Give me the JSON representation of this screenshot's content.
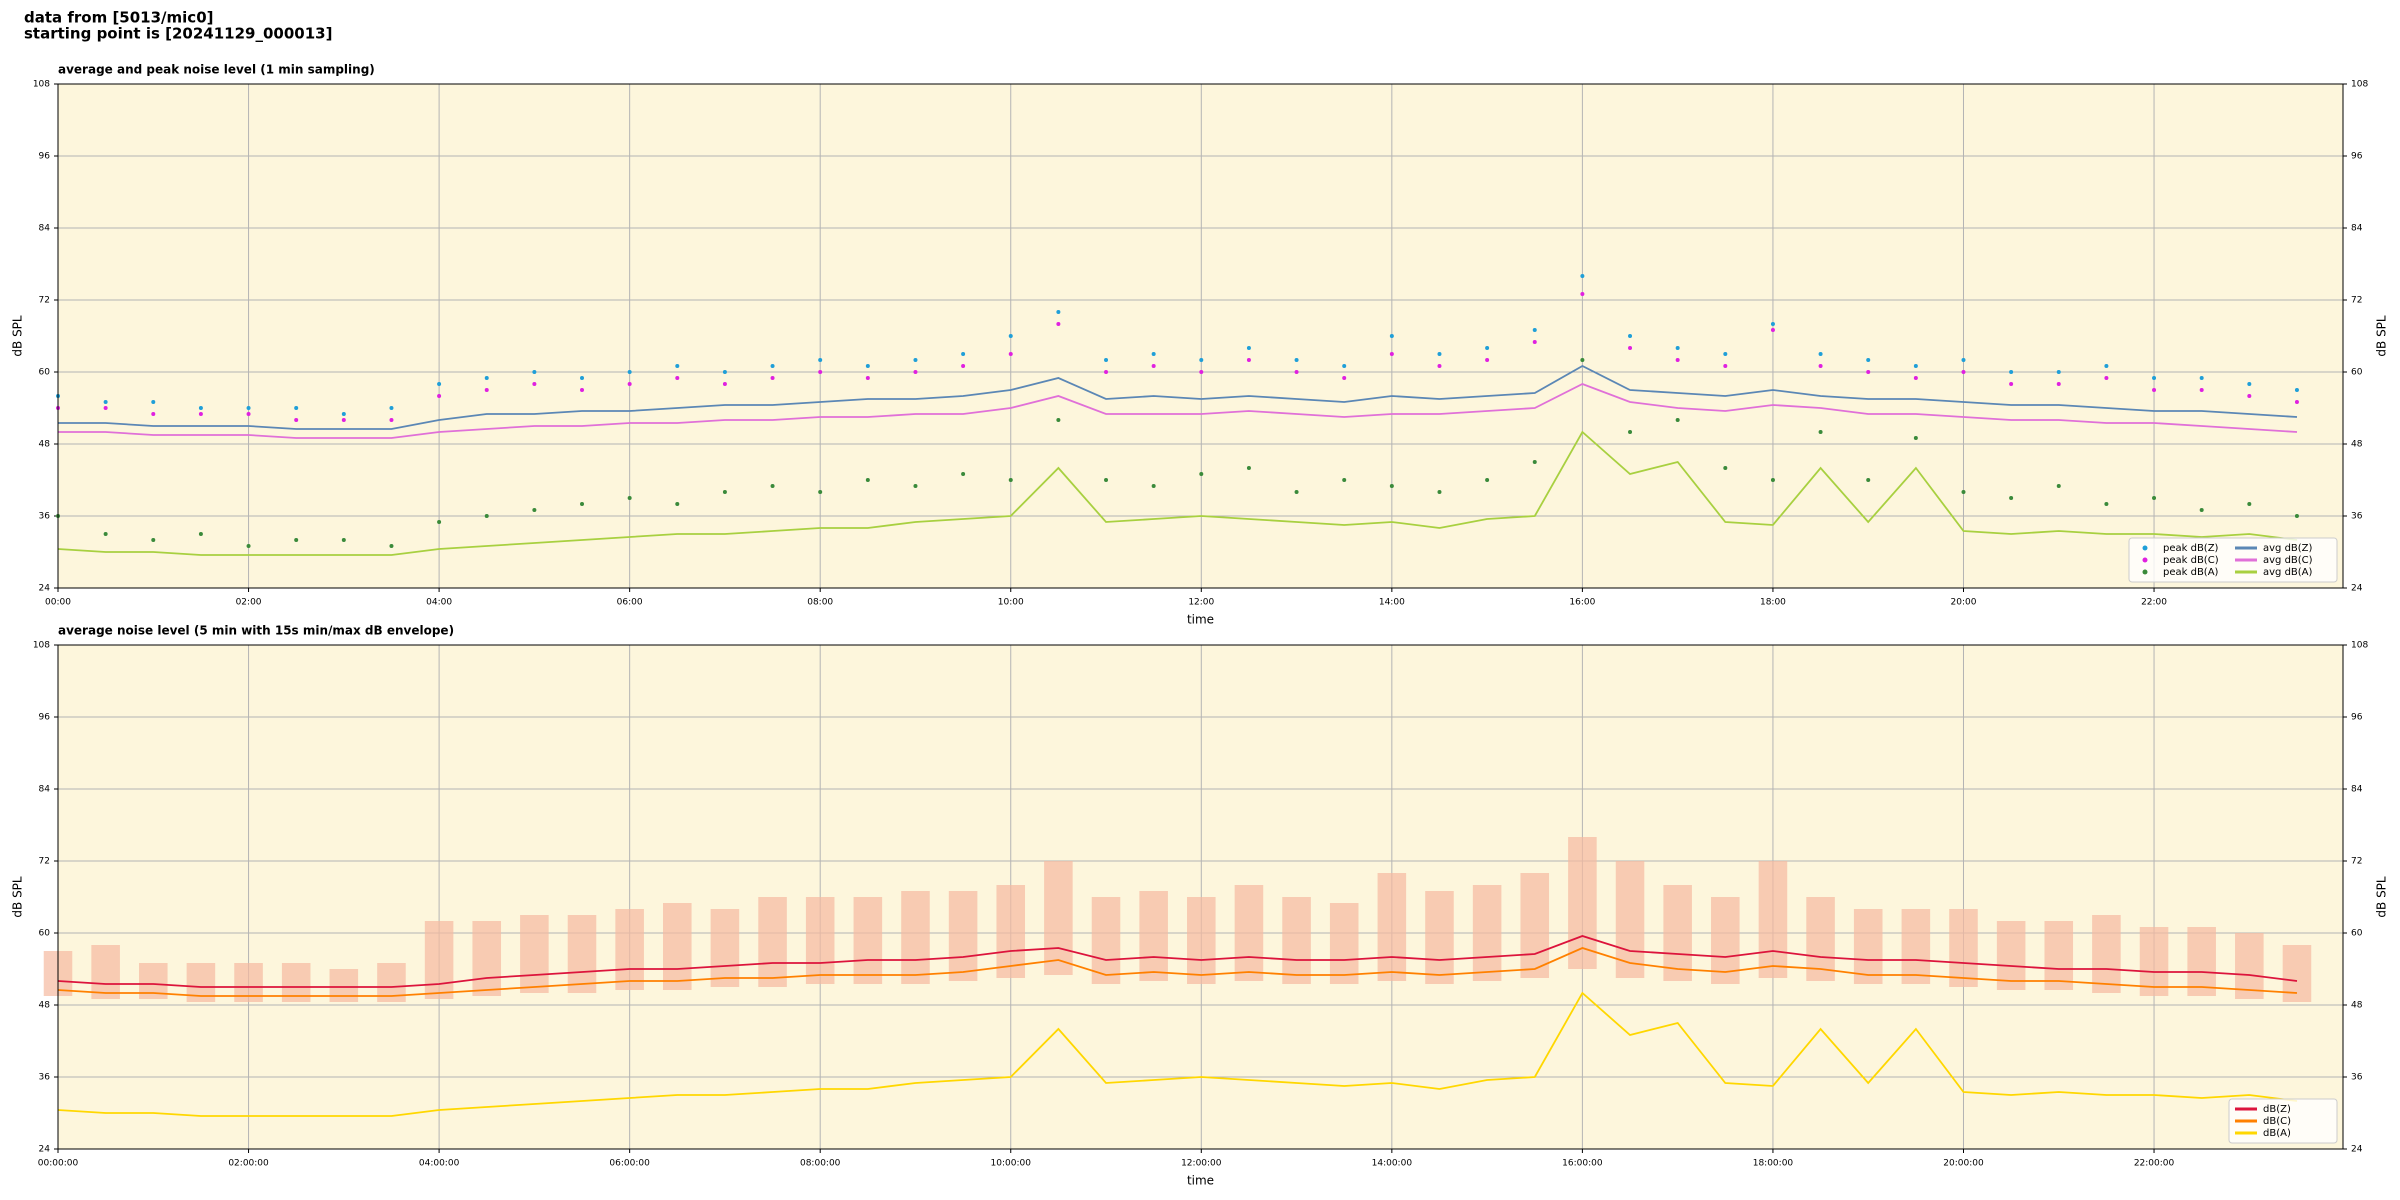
{
  "header": {
    "lines": [
      "data from [5013/mic0]",
      "starting point is [20241129_000013]"
    ]
  },
  "chart_data": [
    {
      "type": "line",
      "title": "average and peak noise level (1 min sampling)",
      "x_label": "time",
      "y_label": "dB SPL",
      "grid": true,
      "legend": "lower right",
      "legend_columns": 2,
      "background": "#fdf6dc",
      "xlim": [
        "00:00",
        "23:59"
      ],
      "xticks": [
        "00:00",
        "02:00",
        "04:00",
        "06:00",
        "08:00",
        "10:00",
        "12:00",
        "14:00",
        "16:00",
        "18:00",
        "20:00",
        "22:00"
      ],
      "ylim": [
        24,
        108
      ],
      "yticks": [
        24,
        36,
        48,
        60,
        72,
        84,
        96,
        108
      ],
      "x": [
        "00:00",
        "00:30",
        "01:00",
        "01:30",
        "02:00",
        "02:30",
        "03:00",
        "03:30",
        "04:00",
        "04:30",
        "05:00",
        "05:30",
        "06:00",
        "06:30",
        "07:00",
        "07:30",
        "08:00",
        "08:30",
        "09:00",
        "09:30",
        "10:00",
        "10:30",
        "11:00",
        "11:30",
        "12:00",
        "12:30",
        "13:00",
        "13:30",
        "14:00",
        "14:30",
        "15:00",
        "15:30",
        "16:00",
        "16:30",
        "17:00",
        "17:30",
        "18:00",
        "18:30",
        "19:00",
        "19:30",
        "20:00",
        "20:30",
        "21:00",
        "21:30",
        "22:00",
        "22:30",
        "23:00",
        "23:30"
      ],
      "series": [
        {
          "name": "peak dB(Z)",
          "kind": "scatter",
          "color": "#1f9fd8",
          "values": [
            56,
            55,
            55,
            54,
            54,
            54,
            53,
            54,
            58,
            59,
            60,
            59,
            60,
            61,
            60,
            61,
            62,
            61,
            62,
            63,
            66,
            70,
            62,
            63,
            62,
            64,
            62,
            61,
            66,
            63,
            64,
            67,
            76,
            66,
            64,
            63,
            68,
            63,
            62,
            61,
            62,
            60,
            60,
            61,
            59,
            59,
            58,
            57
          ]
        },
        {
          "name": "peak dB(C)",
          "kind": "scatter",
          "color": "#e020e0",
          "values": [
            54,
            54,
            53,
            53,
            53,
            52,
            52,
            52,
            56,
            57,
            58,
            57,
            58,
            59,
            58,
            59,
            60,
            59,
            60,
            61,
            63,
            68,
            60,
            61,
            60,
            62,
            60,
            59,
            63,
            61,
            62,
            65,
            73,
            64,
            62,
            61,
            67,
            61,
            60,
            59,
            60,
            58,
            58,
            59,
            57,
            57,
            56,
            55
          ]
        },
        {
          "name": "peak dB(A)",
          "kind": "scatter",
          "color": "#3a8a3a",
          "values": [
            36,
            33,
            32,
            33,
            31,
            32,
            32,
            31,
            35,
            36,
            37,
            38,
            39,
            38,
            40,
            41,
            40,
            42,
            41,
            43,
            42,
            52,
            42,
            41,
            43,
            44,
            40,
            42,
            41,
            40,
            42,
            45,
            62,
            50,
            52,
            44,
            42,
            50,
            42,
            49,
            40,
            39,
            41,
            38,
            39,
            37,
            38,
            36
          ]
        },
        {
          "name": "avg dB(Z)",
          "kind": "line",
          "color": "#5b87b5",
          "values": [
            51.5,
            51.5,
            51,
            51,
            51,
            50.5,
            50.5,
            50.5,
            52,
            53,
            53,
            53.5,
            53.5,
            54,
            54.5,
            54.5,
            55,
            55.5,
            55.5,
            56,
            57,
            59,
            55.5,
            56,
            55.5,
            56,
            55.5,
            55,
            56,
            55.5,
            56,
            56.5,
            61,
            57,
            56.5,
            56,
            57,
            56,
            55.5,
            55.5,
            55,
            54.5,
            54.5,
            54,
            53.5,
            53.5,
            53,
            52.5
          ]
        },
        {
          "name": "avg dB(C)",
          "kind": "line",
          "color": "#e070d8",
          "values": [
            50,
            50,
            49.5,
            49.5,
            49.5,
            49,
            49,
            49,
            50,
            50.5,
            51,
            51,
            51.5,
            51.5,
            52,
            52,
            52.5,
            52.5,
            53,
            53,
            54,
            56,
            53,
            53,
            53,
            53.5,
            53,
            52.5,
            53,
            53,
            53.5,
            54,
            58,
            55,
            54,
            53.5,
            54.5,
            54,
            53,
            53,
            52.5,
            52,
            52,
            51.5,
            51.5,
            51,
            50.5,
            50
          ]
        },
        {
          "name": "avg dB(A)",
          "kind": "line",
          "color": "#a8d040",
          "values": [
            30.5,
            30,
            30,
            29.5,
            29.5,
            29.5,
            29.5,
            29.5,
            30.5,
            31,
            31.5,
            32,
            32.5,
            33,
            33,
            33.5,
            34,
            34,
            35,
            35.5,
            36,
            44,
            35,
            35.5,
            36,
            35.5,
            35,
            34.5,
            35,
            34,
            35.5,
            36,
            50,
            43,
            45,
            35,
            34.5,
            44,
            35,
            44,
            33.5,
            33,
            33.5,
            33,
            33,
            32.5,
            33,
            32
          ]
        }
      ]
    },
    {
      "type": "line",
      "title": "average noise level (5 min with 15s min/max dB envelope)",
      "x_label": "time",
      "y_label": "dB SPL",
      "grid": true,
      "legend": "lower right",
      "legend_columns": 1,
      "background": "#fdf6dc",
      "xlim": [
        "00:00:00",
        "23:59:00"
      ],
      "xticks": [
        "00:00:00",
        "02:00:00",
        "04:00:00",
        "06:00:00",
        "08:00:00",
        "10:00:00",
        "12:00:00",
        "14:00:00",
        "16:00:00",
        "18:00:00",
        "20:00:00",
        "22:00:00"
      ],
      "ylim": [
        24,
        108
      ],
      "yticks": [
        24,
        36,
        48,
        60,
        72,
        84,
        96,
        108
      ],
      "x": [
        "00:00:00",
        "00:30:00",
        "01:00:00",
        "01:30:00",
        "02:00:00",
        "02:30:00",
        "03:00:00",
        "03:30:00",
        "04:00:00",
        "04:30:00",
        "05:00:00",
        "05:30:00",
        "06:00:00",
        "06:30:00",
        "07:00:00",
        "07:30:00",
        "08:00:00",
        "08:30:00",
        "09:00:00",
        "09:30:00",
        "10:00:00",
        "10:30:00",
        "11:00:00",
        "11:30:00",
        "12:00:00",
        "12:30:00",
        "13:00:00",
        "13:30:00",
        "14:00:00",
        "14:30:00",
        "15:00:00",
        "15:30:00",
        "16:00:00",
        "16:30:00",
        "17:00:00",
        "17:30:00",
        "18:00:00",
        "18:30:00",
        "19:00:00",
        "19:30:00",
        "20:00:00",
        "20:30:00",
        "21:00:00",
        "21:30:00",
        "22:00:00",
        "22:30:00",
        "23:00:00",
        "23:30:00"
      ],
      "envelope": {
        "color": "#f5b9a0",
        "lower": [
          49.5,
          49,
          49,
          48.5,
          48.5,
          48.5,
          48.5,
          48.5,
          49,
          49.5,
          50,
          50,
          50.5,
          50.5,
          51,
          51,
          51.5,
          51.5,
          51.5,
          52,
          52.5,
          53,
          51.5,
          52,
          51.5,
          52,
          51.5,
          51.5,
          52,
          51.5,
          52,
          52.5,
          54,
          52.5,
          52,
          51.5,
          52.5,
          52,
          51.5,
          51.5,
          51,
          50.5,
          50.5,
          50,
          49.5,
          49.5,
          49,
          48.5
        ],
        "upper": [
          57,
          58,
          55,
          55,
          55,
          55,
          54,
          55,
          62,
          62,
          63,
          63,
          64,
          65,
          64,
          66,
          66,
          66,
          67,
          67,
          68,
          72,
          66,
          67,
          66,
          68,
          66,
          65,
          70,
          67,
          68,
          70,
          76,
          72,
          68,
          66,
          72,
          66,
          64,
          64,
          64,
          62,
          62,
          63,
          61,
          61,
          60,
          58
        ]
      },
      "series": [
        {
          "name": "dB(Z)",
          "kind": "line",
          "color": "#dc143c",
          "values": [
            52,
            51.5,
            51.5,
            51,
            51,
            51,
            51,
            51,
            51.5,
            52.5,
            53,
            53.5,
            54,
            54,
            54.5,
            55,
            55,
            55.5,
            55.5,
            56,
            57,
            57.5,
            55.5,
            56,
            55.5,
            56,
            55.5,
            55.5,
            56,
            55.5,
            56,
            56.5,
            59.5,
            57,
            56.5,
            56,
            57,
            56,
            55.5,
            55.5,
            55,
            54.5,
            54,
            54,
            53.5,
            53.5,
            53,
            52
          ]
        },
        {
          "name": "dB(C)",
          "kind": "line",
          "color": "#ff8000",
          "values": [
            50.5,
            50,
            50,
            49.5,
            49.5,
            49.5,
            49.5,
            49.5,
            50,
            50.5,
            51,
            51.5,
            52,
            52,
            52.5,
            52.5,
            53,
            53,
            53,
            53.5,
            54.5,
            55.5,
            53,
            53.5,
            53,
            53.5,
            53,
            53,
            53.5,
            53,
            53.5,
            54,
            57.5,
            55,
            54,
            53.5,
            54.5,
            54,
            53,
            53,
            52.5,
            52,
            52,
            51.5,
            51,
            51,
            50.5,
            50
          ]
        },
        {
          "name": "dB(A)",
          "kind": "line",
          "color": "#ffd700",
          "values": [
            30.5,
            30,
            30,
            29.5,
            29.5,
            29.5,
            29.5,
            29.5,
            30.5,
            31,
            31.5,
            32,
            32.5,
            33,
            33,
            33.5,
            34,
            34,
            35,
            35.5,
            36,
            44,
            35,
            35.5,
            36,
            35.5,
            35,
            34.5,
            35,
            34,
            35.5,
            36,
            50,
            43,
            45,
            35,
            34.5,
            44,
            35,
            44,
            33.5,
            33,
            33.5,
            33,
            33,
            32.5,
            33,
            32
          ]
        }
      ]
    }
  ]
}
